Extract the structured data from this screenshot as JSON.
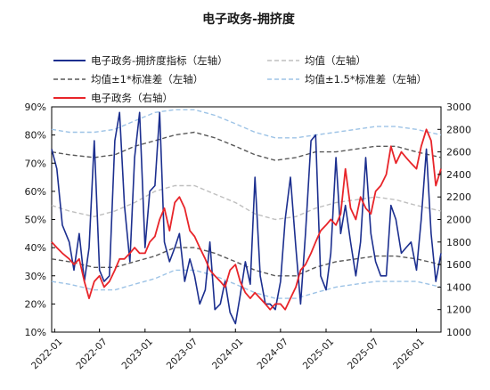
{
  "chart_data": {
    "type": "line",
    "title": "电子政务-拥挤度",
    "x_categories": [
      "2022-01",
      "2022-07",
      "2023-01",
      "2023-07",
      "2024-01",
      "2024-07",
      "2025-01",
      "2025-07",
      "2026-01"
    ],
    "y_left": {
      "range": [
        10,
        90
      ],
      "unit": "%",
      "ticks": [
        "10%",
        "20%",
        "30%",
        "40%",
        "50%",
        "60%",
        "70%",
        "80%",
        "90%"
      ]
    },
    "y_right": {
      "range": [
        1000,
        3000
      ],
      "ticks": [
        "1000",
        "1200",
        "1400",
        "1600",
        "1800",
        "2000",
        "2200",
        "2400",
        "2600",
        "2800",
        "3000"
      ]
    },
    "grid": false,
    "legend": {
      "placement": "top"
    },
    "series": [
      {
        "name": "电子政务-拥挤度指标（左轴）",
        "axis": "left",
        "style": "solid",
        "color": "#1c2f8f",
        "x": [
          "2021-12-20",
          "2022-01-10",
          "2022-02-01",
          "2022-03-01",
          "2022-03-20",
          "2022-04-10",
          "2022-05-01",
          "2022-05-20",
          "2022-06-10",
          "2022-07-01",
          "2022-07-20",
          "2022-08-10",
          "2022-09-01",
          "2022-09-20",
          "2022-10-10",
          "2022-11-01",
          "2022-11-20",
          "2022-12-10",
          "2023-01-01",
          "2023-01-20",
          "2023-02-10",
          "2023-03-01",
          "2023-03-20",
          "2023-04-10",
          "2023-05-01",
          "2023-05-20",
          "2023-06-10",
          "2023-07-01",
          "2023-07-20",
          "2023-08-10",
          "2023-09-01",
          "2023-09-20",
          "2023-10-10",
          "2023-11-01",
          "2023-11-20",
          "2023-12-10",
          "2024-01-01",
          "2024-01-20",
          "2024-02-10",
          "2024-03-01",
          "2024-03-20",
          "2024-04-10",
          "2024-05-01",
          "2024-05-20",
          "2024-06-10",
          "2024-07-01",
          "2024-07-20",
          "2024-08-10",
          "2024-09-01",
          "2024-09-20",
          "2024-10-10",
          "2024-11-01",
          "2024-11-20",
          "2024-12-10",
          "2025-01-01",
          "2025-01-20",
          "2025-02-10",
          "2025-03-01",
          "2025-03-20",
          "2025-04-10",
          "2025-05-01",
          "2025-05-20",
          "2025-06-10",
          "2025-07-01",
          "2025-07-20",
          "2025-08-10",
          "2025-09-01",
          "2025-09-20",
          "2025-10-10",
          "2025-11-01",
          "2025-11-20",
          "2025-12-10",
          "2026-01-01",
          "2026-01-20",
          "2026-02-10",
          "2026-03-01",
          "2026-03-20",
          "2026-04-10"
        ],
        "values": [
          75,
          68,
          48,
          42,
          32,
          45,
          28,
          40,
          78,
          32,
          28,
          30,
          78,
          88,
          55,
          35,
          72,
          88,
          40,
          60,
          62,
          88,
          42,
          35,
          40,
          45,
          28,
          36,
          30,
          20,
          25,
          42,
          18,
          20,
          28,
          17,
          13,
          23,
          35,
          27,
          65,
          30,
          20,
          20,
          18,
          28,
          50,
          65,
          40,
          20,
          45,
          78,
          80,
          30,
          25,
          38,
          72,
          45,
          55,
          42,
          30,
          42,
          72,
          45,
          35,
          30,
          30,
          55,
          50,
          38,
          40,
          42,
          32,
          50,
          75,
          45,
          28,
          38
        ]
      },
      {
        "name": "均值（左轴）",
        "axis": "left",
        "style": "dashed",
        "color": "#bfbfbf",
        "x": [
          "2021-12-20",
          "2022-03-01",
          "2022-06-10",
          "2022-09-01",
          "2022-11-20",
          "2023-02-10",
          "2023-05-01",
          "2023-07-20",
          "2023-10-10",
          "2024-01-01",
          "2024-03-20",
          "2024-06-10",
          "2024-09-01",
          "2024-11-20",
          "2025-02-10",
          "2025-05-01",
          "2025-07-20",
          "2025-10-10",
          "2026-01-01",
          "2026-04-10"
        ],
        "values": [
          55,
          53,
          51,
          53,
          56,
          60,
          62,
          62,
          59,
          56,
          52,
          50,
          51,
          54,
          56,
          57,
          58,
          57,
          55,
          53
        ]
      },
      {
        "name": "均值±1*标准差（左轴）",
        "axis": "left",
        "style": "dashed",
        "color": "#595959",
        "x": [
          "2021-12-20",
          "2022-03-01",
          "2022-06-10",
          "2022-09-01",
          "2022-11-20",
          "2023-02-10",
          "2023-05-01",
          "2023-07-20",
          "2023-10-10",
          "2024-01-01",
          "2024-03-20",
          "2024-06-10",
          "2024-09-01",
          "2024-11-20",
          "2025-02-10",
          "2025-05-01",
          "2025-07-20",
          "2025-10-10",
          "2026-01-01",
          "2026-04-10"
        ],
        "values": [
          74,
          73,
          72,
          73,
          76,
          78,
          80,
          81,
          79,
          76,
          73,
          71,
          72,
          74,
          74,
          75,
          76,
          76,
          74,
          72
        ]
      },
      {
        "name": "均值±1*标准差（左轴）",
        "axis": "left",
        "style": "dashed",
        "color": "#595959",
        "x": [
          "2021-12-20",
          "2022-03-01",
          "2022-06-10",
          "2022-09-01",
          "2022-11-20",
          "2023-02-10",
          "2023-05-01",
          "2023-07-20",
          "2023-10-10",
          "2024-01-01",
          "2024-03-20",
          "2024-06-10",
          "2024-09-01",
          "2024-11-20",
          "2025-02-10",
          "2025-05-01",
          "2025-07-20",
          "2025-10-10",
          "2026-01-01",
          "2026-04-10"
        ],
        "values": [
          36,
          35,
          33,
          33,
          35,
          37,
          40,
          40,
          38,
          35,
          32,
          30,
          30,
          33,
          35,
          36,
          37,
          37,
          36,
          34
        ]
      },
      {
        "name": "均值±1.5*标准差（左轴）",
        "axis": "left",
        "style": "dashed",
        "color": "#9dc3e6",
        "x": [
          "2021-12-20",
          "2022-03-01",
          "2022-06-10",
          "2022-09-01",
          "2022-11-20",
          "2023-02-10",
          "2023-05-01",
          "2023-07-20",
          "2023-10-10",
          "2024-01-01",
          "2024-03-20",
          "2024-06-10",
          "2024-09-01",
          "2024-11-20",
          "2025-02-10",
          "2025-05-01",
          "2025-07-20",
          "2025-10-10",
          "2026-01-01",
          "2026-04-10"
        ],
        "values": [
          82,
          81,
          81,
          82,
          85,
          88,
          89,
          89,
          87,
          84,
          81,
          79,
          79,
          80,
          81,
          82,
          83,
          83,
          82,
          80
        ]
      },
      {
        "name": "均值±1.5*标准差（左轴）",
        "axis": "left",
        "style": "dashed",
        "color": "#9dc3e6",
        "x": [
          "2021-12-20",
          "2022-03-01",
          "2022-06-10",
          "2022-09-01",
          "2022-11-20",
          "2023-02-10",
          "2023-05-01",
          "2023-07-20",
          "2023-10-10",
          "2024-01-01",
          "2024-03-20",
          "2024-06-10",
          "2024-09-01",
          "2024-11-20",
          "2025-02-10",
          "2025-05-01",
          "2025-07-20",
          "2025-10-10",
          "2026-01-01",
          "2026-04-10"
        ],
        "values": [
          28,
          27,
          25,
          25,
          27,
          29,
          32,
          32,
          30,
          27,
          24,
          22,
          22,
          24,
          26,
          27,
          28,
          28,
          28,
          26
        ]
      },
      {
        "name": "电子政务（右轴）",
        "axis": "right",
        "style": "solid",
        "color": "#e8252a",
        "x": [
          "2021-12-20",
          "2022-01-10",
          "2022-02-01",
          "2022-03-01",
          "2022-03-20",
          "2022-04-10",
          "2022-05-01",
          "2022-05-20",
          "2022-06-10",
          "2022-07-01",
          "2022-07-20",
          "2022-08-10",
          "2022-09-01",
          "2022-09-20",
          "2022-10-10",
          "2022-11-01",
          "2022-11-20",
          "2022-12-10",
          "2023-01-01",
          "2023-01-20",
          "2023-02-10",
          "2023-03-01",
          "2023-03-20",
          "2023-04-10",
          "2023-05-01",
          "2023-05-20",
          "2023-06-10",
          "2023-07-01",
          "2023-07-20",
          "2023-08-10",
          "2023-09-01",
          "2023-09-20",
          "2023-10-10",
          "2023-11-01",
          "2023-11-20",
          "2023-12-10",
          "2024-01-01",
          "2024-01-20",
          "2024-02-10",
          "2024-03-01",
          "2024-03-20",
          "2024-04-10",
          "2024-05-01",
          "2024-05-20",
          "2024-06-10",
          "2024-07-01",
          "2024-07-20",
          "2024-08-10",
          "2024-09-01",
          "2024-09-20",
          "2024-10-10",
          "2024-11-01",
          "2024-11-20",
          "2024-12-10",
          "2025-01-01",
          "2025-01-20",
          "2025-02-10",
          "2025-03-01",
          "2025-03-20",
          "2025-04-10",
          "2025-05-01",
          "2025-05-20",
          "2025-06-10",
          "2025-07-01",
          "2025-07-20",
          "2025-08-10",
          "2025-09-01",
          "2025-09-20",
          "2025-10-10",
          "2025-11-01",
          "2025-11-20",
          "2025-12-10",
          "2026-01-01",
          "2026-01-20",
          "2026-02-10",
          "2026-03-01",
          "2026-03-20",
          "2026-04-10"
        ],
        "values": [
          1800,
          1750,
          1700,
          1650,
          1600,
          1650,
          1450,
          1300,
          1450,
          1500,
          1400,
          1450,
          1550,
          1650,
          1650,
          1700,
          1750,
          1700,
          1700,
          1800,
          1850,
          2000,
          2100,
          1900,
          2150,
          2200,
          2100,
          1900,
          1850,
          1750,
          1650,
          1550,
          1500,
          1450,
          1400,
          1550,
          1600,
          1450,
          1350,
          1300,
          1350,
          1300,
          1250,
          1200,
          1250,
          1250,
          1200,
          1300,
          1400,
          1550,
          1600,
          1700,
          1800,
          1900,
          1950,
          2000,
          1950,
          2050,
          2450,
          2100,
          2000,
          2200,
          2100,
          2050,
          2250,
          2300,
          2400,
          2650,
          2500,
          2600,
          2550,
          2500,
          2450,
          2650,
          2800,
          2700,
          2300,
          2450
        ]
      }
    ]
  }
}
